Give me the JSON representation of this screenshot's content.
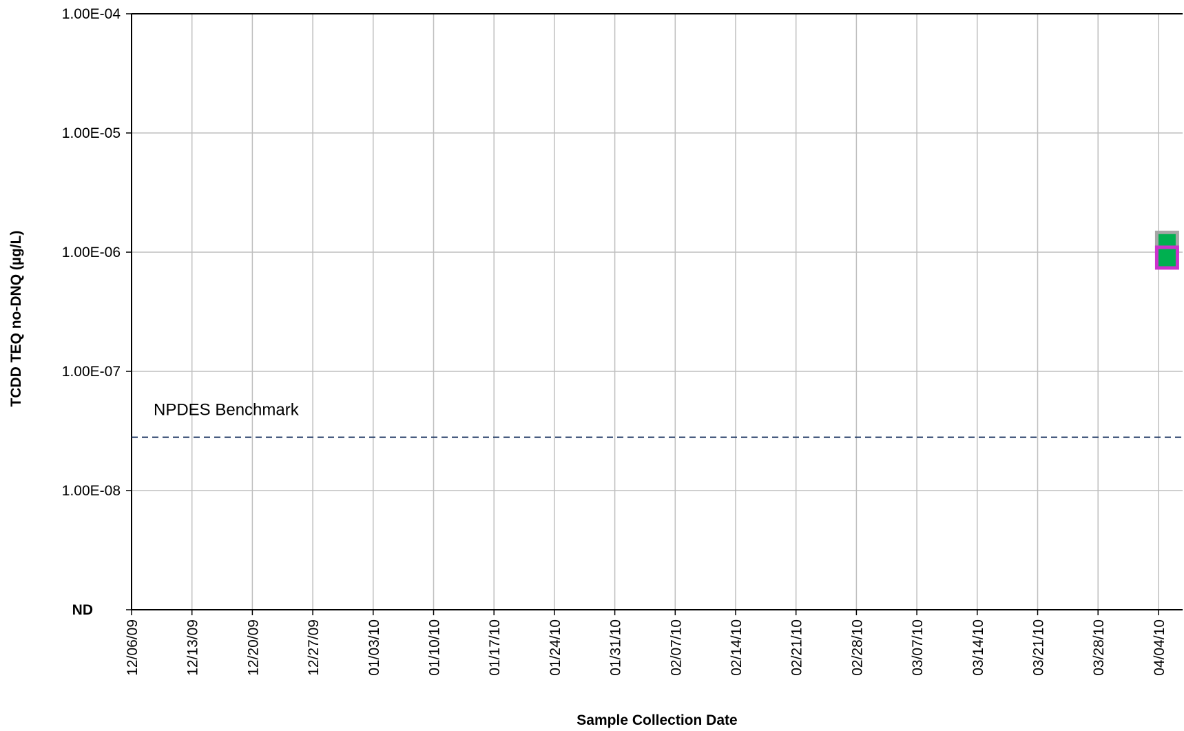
{
  "chart_data": {
    "type": "scatter",
    "title": "",
    "xlabel": "Sample Collection Date",
    "ylabel": "TCDD TEQ no-DNQ (µg/L)",
    "y_scale": "log",
    "ylim": [
      1e-09,
      0.0001
    ],
    "xlim": [
      "2009-12-06",
      "2010-04-08"
    ],
    "x_ticks": [
      "12/06/09",
      "12/13/09",
      "12/20/09",
      "12/27/09",
      "01/03/10",
      "01/10/10",
      "01/17/10",
      "01/24/10",
      "01/31/10",
      "02/07/10",
      "02/14/10",
      "02/21/10",
      "02/28/10",
      "03/07/10",
      "03/14/10",
      "03/21/10",
      "03/28/10",
      "04/04/10"
    ],
    "y_ticks": [
      {
        "label": "ND",
        "value": 1e-09
      },
      {
        "label": "1.00E-08",
        "value": 1e-08
      },
      {
        "label": "1.00E-07",
        "value": 1e-07
      },
      {
        "label": "1.00E-06",
        "value": 1e-06
      },
      {
        "label": "1.00E-05",
        "value": 1e-05
      },
      {
        "label": "1.00E-04",
        "value": 0.0001
      }
    ],
    "grid": true,
    "reference_line": {
      "label": "NPDES Benchmark",
      "value": 2.8e-08,
      "color": "#1f3864",
      "style": "dashed"
    },
    "series": [
      {
        "x": [
          "2010-04-05"
        ],
        "y": [
          1.2e-06
        ],
        "marker_fill": "#00b050",
        "marker_edge": "#a6a6a6"
      },
      {
        "x": [
          "2010-04-05"
        ],
        "y": [
          9e-07
        ],
        "marker_fill": "#00b050",
        "marker_edge": "#cc33cc"
      }
    ],
    "colors": {
      "grid": "#bfbfbf",
      "axis": "#000000"
    }
  }
}
